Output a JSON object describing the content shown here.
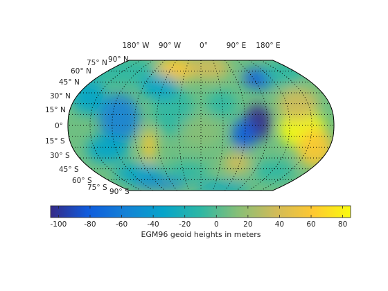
{
  "map": {
    "projection": "Robinson-like pseudocylindrical (world)",
    "grid": true,
    "colormap": "parula",
    "longitude_labels": [
      "180° W",
      "90° W",
      "0°",
      "90° E",
      "180° E"
    ],
    "latitude_labels_north": [
      "90° N",
      "75° N",
      "60° N",
      "45° N",
      "30° N",
      "15° N",
      "0°"
    ],
    "latitude_labels_south": [
      "15° S",
      "30° S",
      "45° S",
      "60° S",
      "75° S",
      "90° S"
    ]
  },
  "colorbar": {
    "label": "EGM96 geoid heights in meters",
    "range": [
      -105,
      85
    ],
    "ticks": [
      "-100",
      "-80",
      "-60",
      "-40",
      "-20",
      "0",
      "20",
      "40",
      "60",
      "80"
    ]
  },
  "colors": {
    "parula": [
      "#352a87",
      "#0f5cdd",
      "#1481d6",
      "#06a4ca",
      "#2eb7a4",
      "#87bf77",
      "#d1bb59",
      "#fec832",
      "#f9fb0e"
    ]
  }
}
